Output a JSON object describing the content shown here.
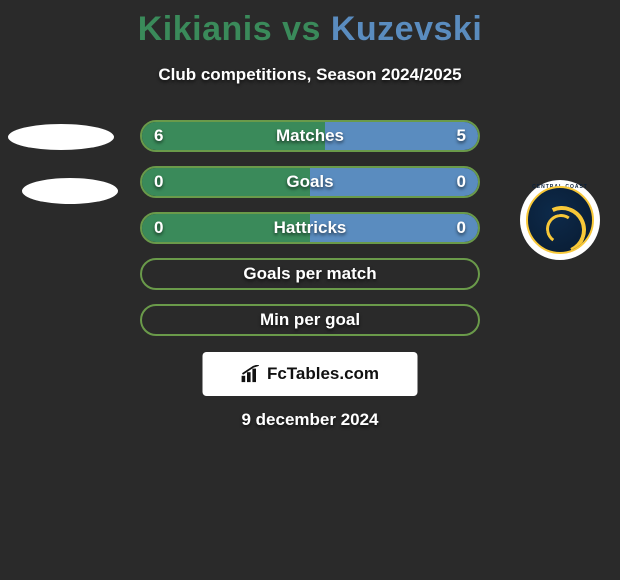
{
  "title": {
    "player1": "Kikianis",
    "vs": "vs",
    "player2": "Kuzevski",
    "player1_color": "#3a8a5a",
    "vs_color": "#3a8a5a",
    "player2_color": "#5a8cbf"
  },
  "subtitle": "Club competitions, Season 2024/2025",
  "colors": {
    "background": "#2a2a2a",
    "left_fill": "#3a8a5a",
    "right_fill": "#5a8cbf",
    "border_empty": "#6a9a4a",
    "text": "#ffffff"
  },
  "stats": [
    {
      "label": "Matches",
      "left_value": "6",
      "right_value": "5",
      "left_pct": 54.5,
      "right_pct": 45.5,
      "border_color": "#6a9a4a",
      "show_fills": true
    },
    {
      "label": "Goals",
      "left_value": "0",
      "right_value": "0",
      "left_pct": 50,
      "right_pct": 50,
      "border_color": "#6a9a4a",
      "show_fills": true
    },
    {
      "label": "Hattricks",
      "left_value": "0",
      "right_value": "0",
      "left_pct": 50,
      "right_pct": 50,
      "border_color": "#6a9a4a",
      "show_fills": true
    },
    {
      "label": "Goals per match",
      "left_value": "",
      "right_value": "",
      "left_pct": 0,
      "right_pct": 0,
      "border_color": "#6a9a4a",
      "show_fills": false
    },
    {
      "label": "Min per goal",
      "left_value": "",
      "right_value": "",
      "left_pct": 0,
      "right_pct": 0,
      "border_color": "#6a9a4a",
      "show_fills": false
    }
  ],
  "badge": {
    "text": "FcTables.com"
  },
  "date": "9 december 2024",
  "club": {
    "arc_text": "CENTRAL COAST"
  }
}
